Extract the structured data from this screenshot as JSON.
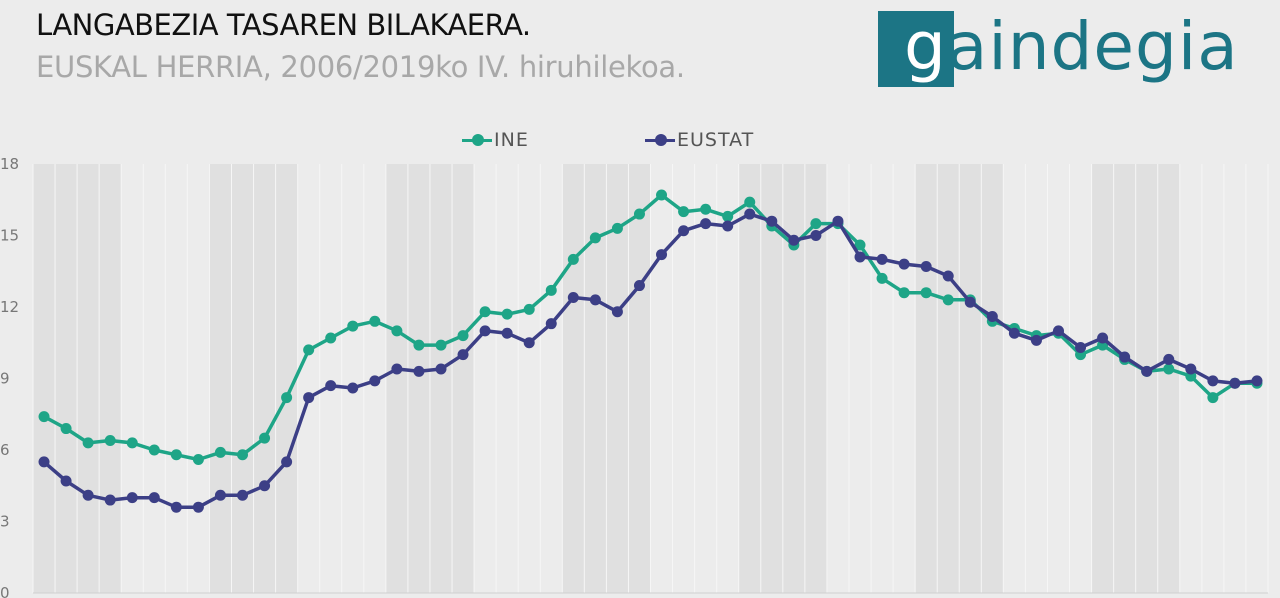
{
  "header": {
    "title": "LANGABEZIA TASAREN BILAKAERA.",
    "subtitle": "EUSKAL HERRIA, 2006/2019ko IV. hiruhilekoa."
  },
  "logo": {
    "text_first": "g",
    "text_rest": "aindegia",
    "color": "#1c7585"
  },
  "colors": {
    "ine": "#1ea587",
    "eustat": "#3c3f86",
    "band": "#e0e0e0",
    "background": "#ececec"
  },
  "legend": {
    "ine_label": "INE",
    "eustat_label": "EUSTAT"
  },
  "chart_data": {
    "type": "line",
    "title": "LANGABEZIA TASAREN BILAKAERA.",
    "subtitle": "EUSKAL HERRIA, 2006/2019ko IV. hiruhilekoa.",
    "xlabel": "",
    "ylabel": "",
    "ylim": [
      0,
      18
    ],
    "yticks": [
      0,
      3,
      6,
      9,
      12,
      15,
      18
    ],
    "grid": "vertical bands by year",
    "legend_position": "top-center",
    "series": [
      {
        "name": "INE",
        "values": [
          7.4,
          6.9,
          6.3,
          6.4,
          6.3,
          6.0,
          5.8,
          5.6,
          5.9,
          5.8,
          6.5,
          8.2,
          10.2,
          10.7,
          11.2,
          11.4,
          11.0,
          10.4,
          10.4,
          10.8,
          11.8,
          11.7,
          11.9,
          12.7,
          14.0,
          14.9,
          15.3,
          15.9,
          16.7,
          16.0,
          16.1,
          15.8,
          16.4,
          15.4,
          14.6,
          15.5,
          15.5,
          14.6,
          13.2,
          12.6,
          12.6,
          12.3,
          12.3,
          11.4,
          11.1,
          10.8,
          10.9,
          10.0,
          10.4,
          9.8,
          9.3,
          9.4,
          9.1,
          8.2,
          8.8,
          8.8
        ]
      },
      {
        "name": "EUSTAT",
        "values": [
          5.5,
          4.7,
          4.1,
          3.9,
          4.0,
          4.0,
          3.6,
          3.6,
          4.1,
          4.1,
          4.5,
          5.5,
          8.2,
          8.7,
          8.6,
          8.9,
          9.4,
          9.3,
          9.4,
          10.0,
          11.0,
          10.9,
          10.5,
          11.3,
          12.4,
          12.3,
          11.8,
          12.9,
          14.2,
          15.2,
          15.5,
          15.4,
          15.9,
          15.6,
          14.8,
          15.0,
          15.6,
          14.1,
          14.0,
          13.8,
          13.7,
          13.3,
          12.2,
          11.6,
          10.9,
          10.6,
          11.0,
          10.3,
          10.7,
          9.9,
          9.3,
          9.8,
          9.4,
          8.9,
          8.8,
          8.9
        ]
      }
    ]
  }
}
